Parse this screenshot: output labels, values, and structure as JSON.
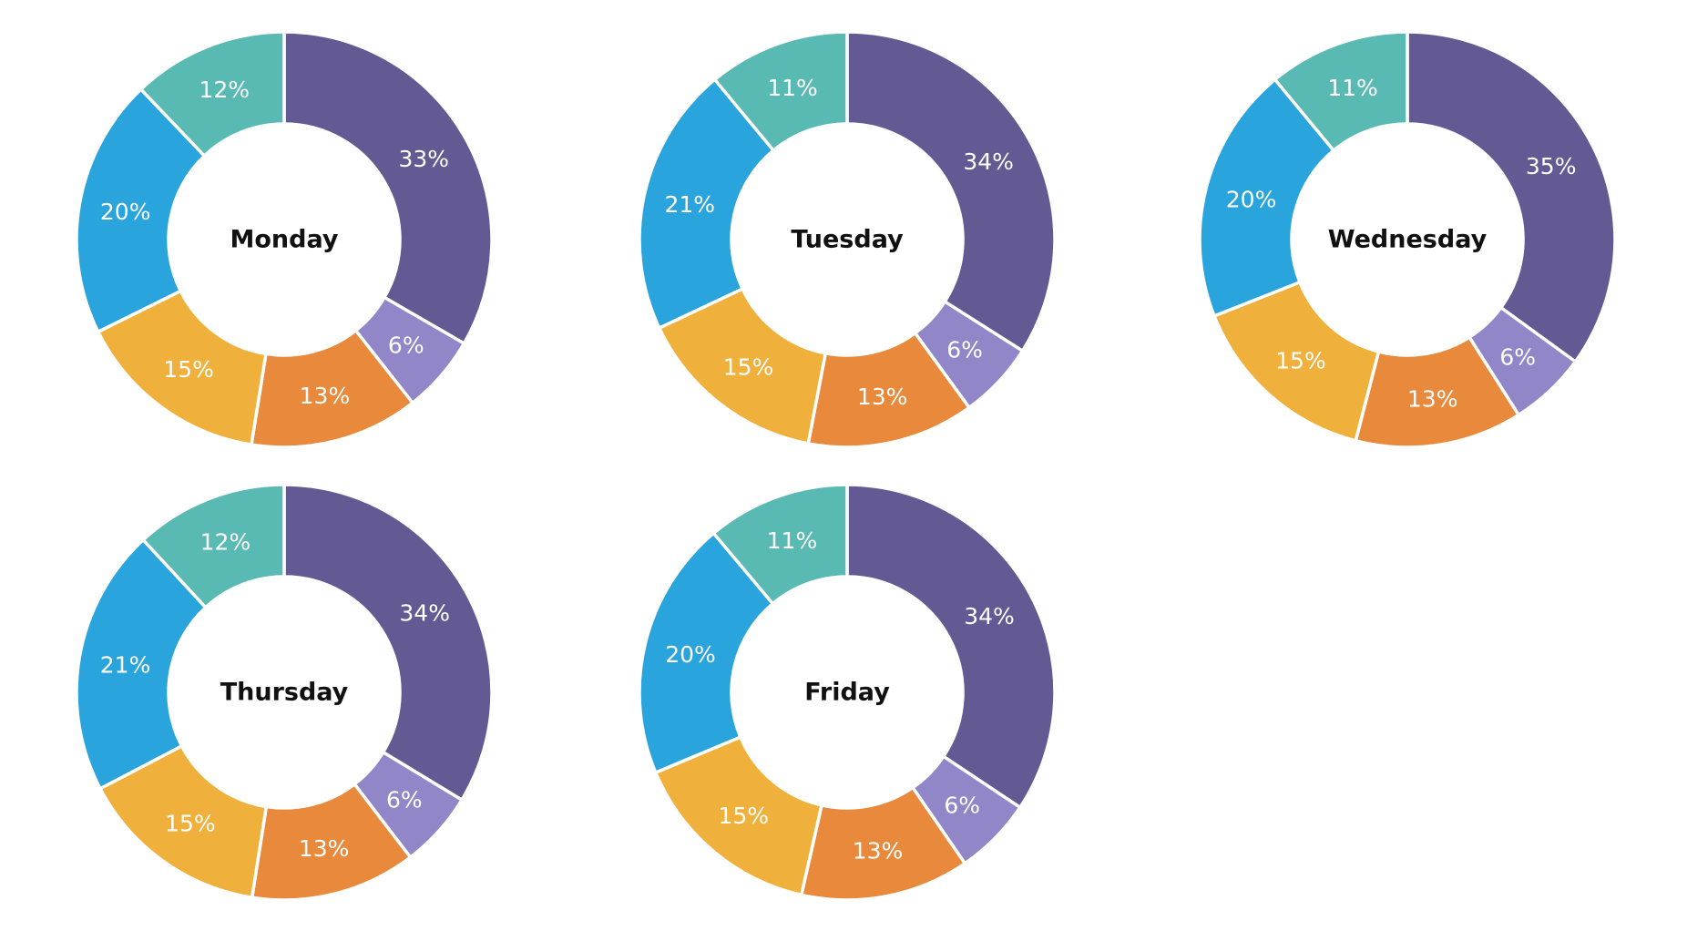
{
  "page": {
    "background_color": "#ffffff"
  },
  "palette": {
    "purple": "#635a94",
    "light_purple": "#9186c8",
    "orange": "#e8893b",
    "amber": "#f0b13c",
    "blue": "#29a4dc",
    "teal": "#59bab3",
    "slice_label_text": "#ffffff",
    "title_text": "#111111",
    "divider": "#ffffff"
  },
  "chart_meta": {
    "type": "pie",
    "subtype": "donut",
    "start_angle": "top",
    "direction": "clockwise",
    "outer_radius": 228,
    "inner_radius": 127,
    "label_radius": 177,
    "divider_color": "#ffffff",
    "divider_width": 3.5,
    "color_keys": [
      "purple",
      "light_purple",
      "orange",
      "amber",
      "blue",
      "teal"
    ],
    "legend": "none"
  },
  "chart_data": [
    {
      "type": "pie",
      "title": "Monday",
      "labels": [
        "33%",
        "6%",
        "13%",
        "15%",
        "20%",
        "12%"
      ],
      "values": [
        33,
        6,
        13,
        15,
        20,
        12
      ]
    },
    {
      "type": "pie",
      "title": "Tuesday",
      "labels": [
        "34%",
        "6%",
        "13%",
        "15%",
        "21%",
        "11%"
      ],
      "values": [
        34,
        6,
        13,
        15,
        21,
        11
      ]
    },
    {
      "type": "pie",
      "title": "Wednesday",
      "labels": [
        "35%",
        "6%",
        "13%",
        "15%",
        "20%",
        "11%"
      ],
      "values": [
        35,
        6,
        13,
        15,
        20,
        11
      ]
    },
    {
      "type": "pie",
      "title": "Thursday",
      "labels": [
        "34%",
        "6%",
        "13%",
        "15%",
        "21%",
        "12%"
      ],
      "values": [
        34,
        6,
        13,
        15,
        21,
        12
      ]
    },
    {
      "type": "pie",
      "title": "Friday",
      "labels": [
        "34%",
        "6%",
        "13%",
        "15%",
        "20%",
        "11%"
      ],
      "values": [
        34,
        6,
        13,
        15,
        20,
        11
      ]
    }
  ]
}
